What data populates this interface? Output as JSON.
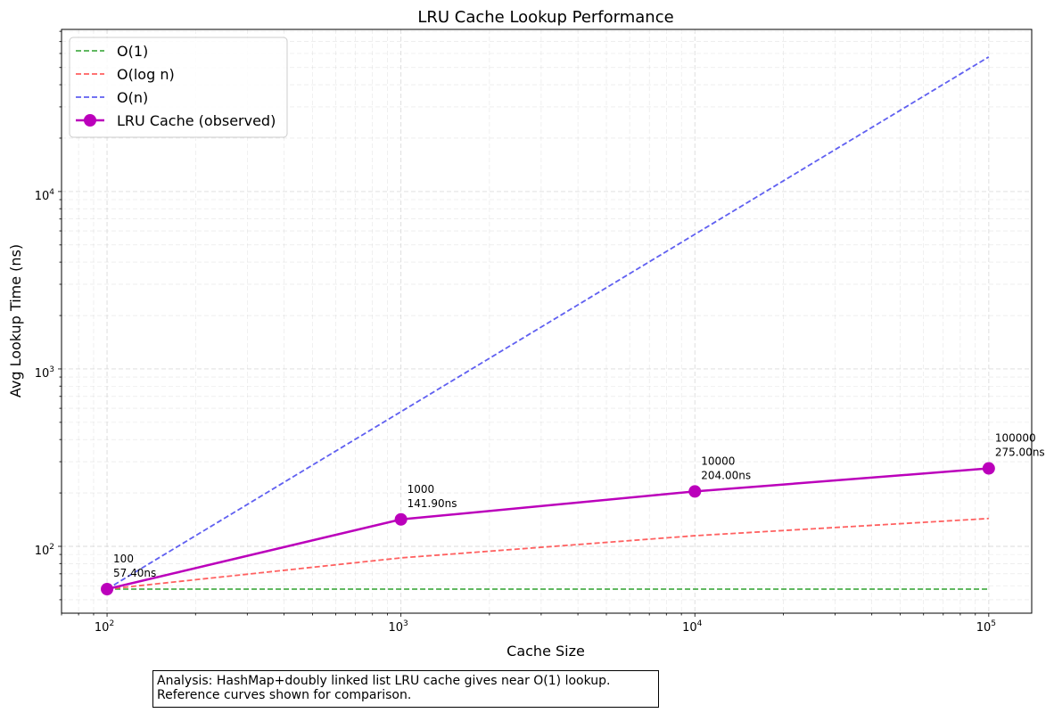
{
  "chart_data": {
    "type": "line",
    "title": "LRU Cache Lookup Performance",
    "xlabel": "Cache Size",
    "ylabel": "Avg Lookup Time (ns)",
    "x_scale": "log",
    "y_scale": "log",
    "xlim": [
      70,
      140000
    ],
    "ylim": [
      42,
      82000
    ],
    "grid": true,
    "legend_position": "top-left",
    "x_ticks": [
      {
        "base": "10",
        "exp": "2",
        "value": 100
      },
      {
        "base": "10",
        "exp": "3",
        "value": 1000
      },
      {
        "base": "10",
        "exp": "4",
        "value": 10000
      },
      {
        "base": "10",
        "exp": "5",
        "value": 100000
      }
    ],
    "y_ticks": [
      {
        "base": "10",
        "exp": "2",
        "value": 100
      },
      {
        "base": "10",
        "exp": "3",
        "value": 1000
      },
      {
        "base": "10",
        "exp": "4",
        "value": 10000
      }
    ],
    "series": [
      {
        "name": "O(1)",
        "color": "#2ca02c",
        "style": "dashed",
        "x": [
          100,
          1000,
          10000,
          100000
        ],
        "y": [
          57.4,
          57.4,
          57.4,
          57.4
        ]
      },
      {
        "name": "O(log n)",
        "color": "#ff4444",
        "style": "dashed",
        "x": [
          100,
          1000,
          10000,
          100000
        ],
        "y": [
          57.4,
          86.1,
          114.8,
          143.5
        ]
      },
      {
        "name": "O(n)",
        "color": "#4444ee",
        "style": "dashed",
        "x": [
          100,
          1000,
          10000,
          100000
        ],
        "y": [
          57.4,
          574,
          5740,
          57400
        ]
      },
      {
        "name": "LRU Cache (observed)",
        "color": "#bb00bb",
        "style": "solid-markers",
        "x": [
          100,
          1000,
          10000,
          100000
        ],
        "y": [
          57.4,
          141.9,
          204.0,
          275.0
        ]
      }
    ],
    "annotations": [
      {
        "size": "100",
        "time": "57.40ns",
        "x": 100,
        "y": 57.4
      },
      {
        "size": "1000",
        "time": "141.90ns",
        "x": 1000,
        "y": 141.9
      },
      {
        "size": "10000",
        "time": "204.00ns",
        "x": 10000,
        "y": 204.0
      },
      {
        "size": "100000",
        "time": "275.00ns",
        "x": 100000,
        "y": 275.0
      }
    ]
  },
  "analysis": {
    "line1": "Analysis: HashMap+doubly linked list LRU cache gives near O(1) lookup.",
    "line2": "Reference curves shown for comparison."
  }
}
